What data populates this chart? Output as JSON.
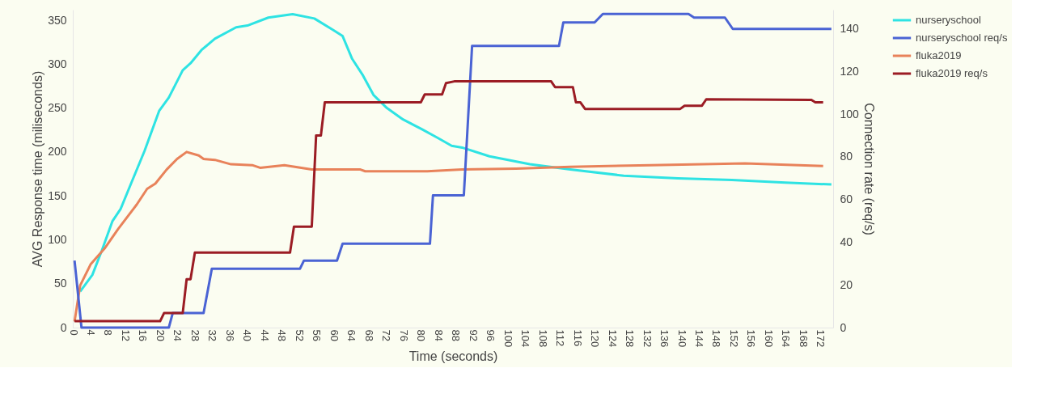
{
  "chart_data": {
    "type": "line",
    "xlabel": "Time (seconds)",
    "ylabel": "AVG Response time (miliseconds)",
    "y2label": "Connection rate (req/s)",
    "xlim": [
      0,
      175
    ],
    "xticks": [
      0,
      4,
      8,
      12,
      16,
      20,
      24,
      28,
      32,
      36,
      40,
      44,
      48,
      52,
      56,
      60,
      64,
      68,
      72,
      76,
      80,
      84,
      88,
      92,
      96,
      100,
      104,
      108,
      112,
      116,
      120,
      124,
      128,
      132,
      136,
      140,
      144,
      148,
      152,
      156,
      160,
      164,
      168,
      172
    ],
    "ylim": [
      0,
      362
    ],
    "yticks": [
      0,
      50,
      100,
      150,
      200,
      250,
      300,
      350
    ],
    "y2lim": [
      0,
      149
    ],
    "y2ticks": [
      0,
      20,
      40,
      60,
      80,
      100,
      120,
      140
    ],
    "grid": false,
    "legend": "top right",
    "series": [
      {
        "name": "nurseryschool",
        "color": "#2ee3e3",
        "x": [
          1.7,
          4.5,
          6.7,
          9.1,
          11,
          13.4,
          16.5,
          19.9,
          22.1,
          25.3,
          27.1,
          29.6,
          32.7,
          37.6,
          40.2,
          45,
          50.6,
          55.6,
          59.9,
          62.1,
          64.3,
          66.8,
          69.2,
          72.3,
          76,
          80.3,
          84,
          87.2,
          89.6,
          95.9,
          105.2,
          114.5,
          126.8,
          139.3,
          151.7,
          164,
          174.6
        ],
        "values": [
          41,
          60,
          88,
          121,
          135,
          164,
          201,
          247,
          262,
          293,
          301,
          316,
          329,
          342,
          344,
          353,
          357,
          352,
          339,
          332,
          306,
          287,
          265,
          250,
          237,
          226,
          216,
          207,
          205,
          195,
          186,
          180,
          173,
          170,
          168,
          165,
          163
        ]
      },
      {
        "name": "nurseryschool req/s",
        "color": "#4a63d4",
        "axis": "y2",
        "x": [
          0.4,
          2,
          22.1,
          23,
          30.1,
          32,
          52.3,
          53.2,
          60.8,
          62.1,
          82.2,
          82.9,
          90,
          91.9,
          111.9,
          112.9,
          120.1,
          122,
          141.7,
          143,
          150.1,
          151.9,
          174.6
        ],
        "values": [
          31.4,
          0,
          0,
          6.8,
          6.8,
          27.6,
          27.6,
          31.4,
          31.4,
          39.3,
          39.3,
          62,
          62,
          132,
          132,
          143,
          143,
          147,
          147,
          145.3,
          145.3,
          140,
          140
        ]
      },
      {
        "name": "fluka2019",
        "color": "#e8825a",
        "x": [
          0.4,
          1.7,
          4.1,
          7.3,
          10.4,
          14.7,
          17.1,
          19,
          21.6,
          24,
          26.2,
          29,
          30.1,
          32.7,
          36.4,
          41.3,
          43.1,
          48.7,
          55,
          66.2,
          67.3,
          81.6,
          89.6,
          102,
          114.5,
          133,
          154.7,
          172.7
        ],
        "values": [
          7,
          48,
          72,
          90,
          112,
          140,
          158,
          164,
          180,
          192,
          200,
          196,
          192,
          191,
          186,
          185,
          182,
          185,
          180,
          180,
          178,
          178,
          180,
          181,
          183,
          185,
          187,
          184
        ]
      },
      {
        "name": "fluka2019 req/s",
        "color": "#9b1c24",
        "axis": "y2",
        "x": [
          0.4,
          20.1,
          21,
          25.3,
          26.2,
          27.1,
          28.1,
          50,
          50.9,
          55,
          56,
          57.1,
          58,
          80.1,
          81,
          85,
          85.9,
          87.8,
          110.1,
          111,
          115.1,
          115.8,
          116.8,
          117.9,
          139.8,
          140.8,
          144.8,
          145.8,
          170,
          170.9,
          172.7
        ],
        "values": [
          3,
          3,
          6.8,
          6.8,
          22.7,
          22.7,
          35.2,
          35.2,
          47.3,
          47.3,
          90,
          90,
          105.6,
          105.6,
          109.3,
          109.3,
          114.6,
          115.4,
          115.4,
          112.7,
          112.7,
          105.6,
          105.6,
          102.5,
          102.5,
          104,
          104,
          107,
          106.7,
          105.6,
          105.6
        ]
      }
    ]
  }
}
